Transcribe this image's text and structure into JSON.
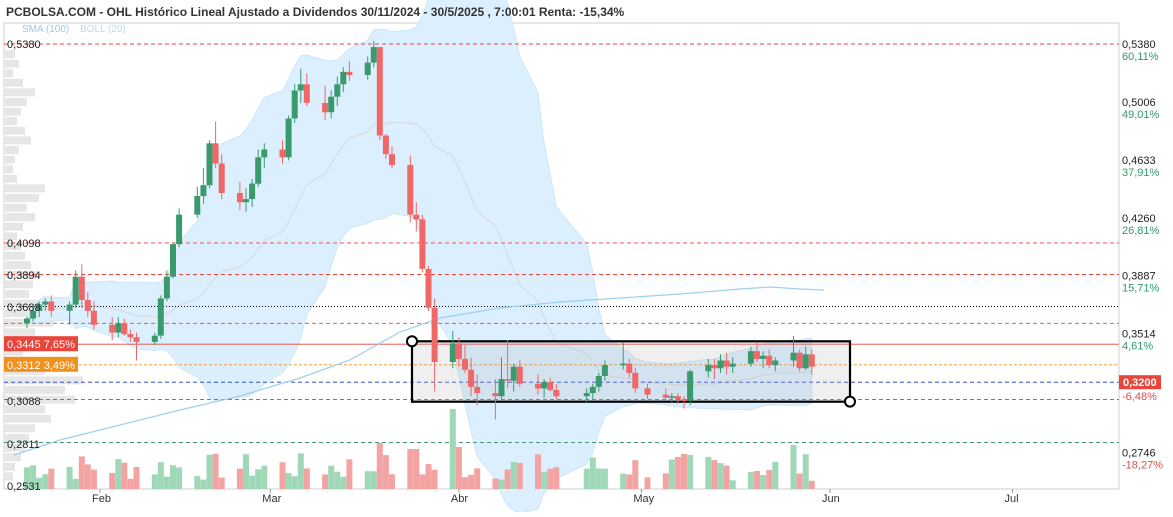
{
  "header": {
    "title": "PCBOLSA.COM - OHL Histórico Lineal Ajustado a Dividendos 30/11/2024 - 30/5/2025 , 7:00:01 Renta: -15,34%"
  },
  "legend": {
    "sma_label": "SMA (100)",
    "boll_label": "BOLL (20)"
  },
  "colors": {
    "bull": "#3a9a6e",
    "bear": "#f06767",
    "bollinger_fill": "#dcefff",
    "sma": "#9bd0f0",
    "resistance": "#e8453c",
    "support_blue": "#1b38c8",
    "orange": "#f0901e",
    "volume_bull": "#9ed8b6",
    "volume_bear": "#f4a3a3"
  },
  "chart_data": {
    "type": "candlestick",
    "title": "OHL Histórico Lineal Ajustado a Dividendos 30/11/2024 - 30/5/2025",
    "ylim": [
      0.2531,
      0.538
    ],
    "x_months": [
      "Feb",
      "Mar",
      "Abr",
      "May",
      "Jun",
      "Jul"
    ],
    "left_axis_ticks": [
      "0,5380",
      "0,4098",
      "0,3894",
      "0,3688",
      "0,3088",
      "0,2811",
      "0,2531"
    ],
    "right_axis_ticks": [
      {
        "price": "0,5380",
        "pct": "60,11%"
      },
      {
        "price": "0,5006",
        "pct": "49,01%"
      },
      {
        "price": "0,4633",
        "pct": "37,91%"
      },
      {
        "price": "0,4260",
        "pct": "26,81%"
      },
      {
        "price": "0,3887",
        "pct": "15,71%"
      },
      {
        "price": "0,3514",
        "pct": "4,61%"
      },
      {
        "price": "0,2746",
        "pct": "-18,27%"
      }
    ],
    "last_price_label": "0,3200",
    "last_pct_label": "-6,48%",
    "level_tags": [
      {
        "price": "0,3445",
        "pct": "7,65%",
        "color": "#e8453c"
      },
      {
        "price": "0,3312",
        "pct": "3,49%",
        "color": "#f0901e"
      }
    ],
    "levels": [
      0.538,
      0.4098,
      0.3894,
      0.3688,
      0.3445,
      0.3312,
      0.32,
      0.3088,
      0.2811
    ],
    "candles": [
      {
        "d": "2025-01-20",
        "o": 0.358,
        "h": 0.362,
        "l": 0.355,
        "c": 0.361
      },
      {
        "d": "2025-01-21",
        "o": 0.361,
        "h": 0.369,
        "l": 0.359,
        "c": 0.366
      },
      {
        "d": "2025-01-22",
        "o": 0.366,
        "h": 0.372,
        "l": 0.362,
        "c": 0.37
      },
      {
        "d": "2025-01-23",
        "o": 0.37,
        "h": 0.374,
        "l": 0.366,
        "c": 0.372
      },
      {
        "d": "2025-01-24",
        "o": 0.372,
        "h": 0.376,
        "l": 0.362,
        "c": 0.366
      },
      {
        "d": "2025-01-27",
        "o": 0.366,
        "h": 0.372,
        "l": 0.357,
        "c": 0.37
      },
      {
        "d": "2025-01-28",
        "o": 0.37,
        "h": 0.392,
        "l": 0.368,
        "c": 0.388
      },
      {
        "d": "2025-01-29",
        "o": 0.388,
        "h": 0.396,
        "l": 0.368,
        "c": 0.373
      },
      {
        "d": "2025-01-30",
        "o": 0.373,
        "h": 0.378,
        "l": 0.362,
        "c": 0.366
      },
      {
        "d": "2025-01-31",
        "o": 0.366,
        "h": 0.372,
        "l": 0.354,
        "c": 0.357
      },
      {
        "d": "2025-02-03",
        "o": 0.357,
        "h": 0.362,
        "l": 0.347,
        "c": 0.352
      },
      {
        "d": "2025-02-04",
        "o": 0.352,
        "h": 0.362,
        "l": 0.349,
        "c": 0.358
      },
      {
        "d": "2025-02-05",
        "o": 0.358,
        "h": 0.361,
        "l": 0.35,
        "c": 0.351
      },
      {
        "d": "2025-02-06",
        "o": 0.351,
        "h": 0.354,
        "l": 0.346,
        "c": 0.349
      },
      {
        "d": "2025-02-07",
        "o": 0.349,
        "h": 0.352,
        "l": 0.334,
        "c": 0.346
      },
      {
        "d": "2025-02-10",
        "o": 0.346,
        "h": 0.352,
        "l": 0.344,
        "c": 0.35
      },
      {
        "d": "2025-02-11",
        "o": 0.35,
        "h": 0.376,
        "l": 0.348,
        "c": 0.374
      },
      {
        "d": "2025-02-12",
        "o": 0.374,
        "h": 0.392,
        "l": 0.372,
        "c": 0.388
      },
      {
        "d": "2025-02-13",
        "o": 0.388,
        "h": 0.41,
        "l": 0.387,
        "c": 0.409
      },
      {
        "d": "2025-02-14",
        "o": 0.409,
        "h": 0.432,
        "l": 0.407,
        "c": 0.428
      },
      {
        "d": "2025-02-17",
        "o": 0.428,
        "h": 0.446,
        "l": 0.426,
        "c": 0.44
      },
      {
        "d": "2025-02-18",
        "o": 0.44,
        "h": 0.458,
        "l": 0.435,
        "c": 0.447
      },
      {
        "d": "2025-02-19",
        "o": 0.447,
        "h": 0.476,
        "l": 0.445,
        "c": 0.474
      },
      {
        "d": "2025-02-20",
        "o": 0.474,
        "h": 0.488,
        "l": 0.458,
        "c": 0.461
      },
      {
        "d": "2025-02-21",
        "o": 0.461,
        "h": 0.467,
        "l": 0.438,
        "c": 0.442
      },
      {
        "d": "2025-02-24",
        "o": 0.442,
        "h": 0.449,
        "l": 0.431,
        "c": 0.436
      },
      {
        "d": "2025-02-25",
        "o": 0.436,
        "h": 0.445,
        "l": 0.43,
        "c": 0.438
      },
      {
        "d": "2025-02-26",
        "o": 0.438,
        "h": 0.451,
        "l": 0.433,
        "c": 0.448
      },
      {
        "d": "2025-02-27",
        "o": 0.448,
        "h": 0.47,
        "l": 0.446,
        "c": 0.465
      },
      {
        "d": "2025-02-28",
        "o": 0.465,
        "h": 0.474,
        "l": 0.458,
        "c": 0.47
      },
      {
        "d": "2025-03-03",
        "o": 0.47,
        "h": 0.476,
        "l": 0.461,
        "c": 0.465
      },
      {
        "d": "2025-03-04",
        "o": 0.465,
        "h": 0.492,
        "l": 0.463,
        "c": 0.49
      },
      {
        "d": "2025-03-05",
        "o": 0.49,
        "h": 0.512,
        "l": 0.487,
        "c": 0.508
      },
      {
        "d": "2025-03-06",
        "o": 0.508,
        "h": 0.522,
        "l": 0.5,
        "c": 0.512
      },
      {
        "d": "2025-03-07",
        "o": 0.512,
        "h": 0.519,
        "l": 0.498,
        "c": 0.5
      },
      {
        "d": "2025-03-10",
        "o": 0.5,
        "h": 0.511,
        "l": 0.489,
        "c": 0.494
      },
      {
        "d": "2025-03-11",
        "o": 0.494,
        "h": 0.508,
        "l": 0.49,
        "c": 0.504
      },
      {
        "d": "2025-03-12",
        "o": 0.504,
        "h": 0.517,
        "l": 0.498,
        "c": 0.512
      },
      {
        "d": "2025-03-13",
        "o": 0.512,
        "h": 0.523,
        "l": 0.507,
        "c": 0.52
      },
      {
        "d": "2025-03-14",
        "o": 0.52,
        "h": 0.527,
        "l": 0.514,
        "c": 0.518
      },
      {
        "d": "2025-03-17",
        "o": 0.518,
        "h": 0.53,
        "l": 0.515,
        "c": 0.526
      },
      {
        "d": "2025-03-18",
        "o": 0.526,
        "h": 0.54,
        "l": 0.523,
        "c": 0.536
      },
      {
        "d": "2025-03-19",
        "o": 0.536,
        "h": 0.536,
        "l": 0.476,
        "c": 0.479
      },
      {
        "d": "2025-03-20",
        "o": 0.479,
        "h": 0.48,
        "l": 0.464,
        "c": 0.467
      },
      {
        "d": "2025-03-21",
        "o": 0.467,
        "h": 0.472,
        "l": 0.458,
        "c": 0.46
      },
      {
        "d": "2025-03-24",
        "o": 0.46,
        "h": 0.466,
        "l": 0.423,
        "c": 0.428
      },
      {
        "d": "2025-03-25",
        "o": 0.428,
        "h": 0.436,
        "l": 0.417,
        "c": 0.425
      },
      {
        "d": "2025-03-26",
        "o": 0.425,
        "h": 0.428,
        "l": 0.391,
        "c": 0.393
      },
      {
        "d": "2025-03-27",
        "o": 0.393,
        "h": 0.395,
        "l": 0.366,
        "c": 0.368
      },
      {
        "d": "2025-03-28",
        "o": 0.368,
        "h": 0.374,
        "l": 0.314,
        "c": 0.333
      },
      {
        "d": "2025-03-31",
        "o": 0.333,
        "h": 0.353,
        "l": 0.329,
        "c": 0.345
      },
      {
        "d": "2025-04-01",
        "o": 0.345,
        "h": 0.349,
        "l": 0.33,
        "c": 0.335
      },
      {
        "d": "2025-04-02",
        "o": 0.335,
        "h": 0.344,
        "l": 0.326,
        "c": 0.328
      },
      {
        "d": "2025-04-03",
        "o": 0.328,
        "h": 0.336,
        "l": 0.311,
        "c": 0.317
      },
      {
        "d": "2025-04-04",
        "o": 0.317,
        "h": 0.325,
        "l": 0.305,
        "c": 0.313
      },
      {
        "d": "2025-04-07",
        "o": 0.313,
        "h": 0.322,
        "l": 0.296,
        "c": 0.311
      },
      {
        "d": "2025-04-08",
        "o": 0.311,
        "h": 0.336,
        "l": 0.309,
        "c": 0.322
      },
      {
        "d": "2025-04-09",
        "o": 0.322,
        "h": 0.347,
        "l": 0.316,
        "c": 0.321
      },
      {
        "d": "2025-04-10",
        "o": 0.321,
        "h": 0.332,
        "l": 0.314,
        "c": 0.33
      },
      {
        "d": "2025-04-11",
        "o": 0.33,
        "h": 0.334,
        "l": 0.317,
        "c": 0.319
      },
      {
        "d": "2025-04-14",
        "o": 0.319,
        "h": 0.325,
        "l": 0.312,
        "c": 0.316
      },
      {
        "d": "2025-04-15",
        "o": 0.316,
        "h": 0.322,
        "l": 0.31,
        "c": 0.32
      },
      {
        "d": "2025-04-16",
        "o": 0.32,
        "h": 0.323,
        "l": 0.314,
        "c": 0.315
      },
      {
        "d": "2025-04-17",
        "o": 0.315,
        "h": 0.319,
        "l": 0.309,
        "c": 0.311
      },
      {
        "d": "2025-04-22",
        "o": 0.311,
        "h": 0.316,
        "l": 0.307,
        "c": 0.313
      },
      {
        "d": "2025-04-23",
        "o": 0.313,
        "h": 0.319,
        "l": 0.309,
        "c": 0.317
      },
      {
        "d": "2025-04-24",
        "o": 0.317,
        "h": 0.326,
        "l": 0.314,
        "c": 0.324
      },
      {
        "d": "2025-04-25",
        "o": 0.324,
        "h": 0.334,
        "l": 0.321,
        "c": 0.331
      },
      {
        "d": "2025-04-28",
        "o": 0.331,
        "h": 0.346,
        "l": 0.328,
        "c": 0.332
      },
      {
        "d": "2025-04-29",
        "o": 0.332,
        "h": 0.335,
        "l": 0.323,
        "c": 0.326
      },
      {
        "d": "2025-04-30",
        "o": 0.326,
        "h": 0.329,
        "l": 0.313,
        "c": 0.316
      },
      {
        "d": "2025-05-02",
        "o": 0.316,
        "h": 0.319,
        "l": 0.309,
        "c": 0.312
      },
      {
        "d": "2025-05-05",
        "o": 0.312,
        "h": 0.316,
        "l": 0.309,
        "c": 0.31
      },
      {
        "d": "2025-05-06",
        "o": 0.31,
        "h": 0.313,
        "l": 0.307,
        "c": 0.311
      },
      {
        "d": "2025-05-07",
        "o": 0.311,
        "h": 0.313,
        "l": 0.306,
        "c": 0.309
      },
      {
        "d": "2025-05-08",
        "o": 0.309,
        "h": 0.311,
        "l": 0.303,
        "c": 0.308
      },
      {
        "d": "2025-05-09",
        "o": 0.308,
        "h": 0.328,
        "l": 0.305,
        "c": 0.327
      },
      {
        "d": "2025-05-12",
        "o": 0.327,
        "h": 0.335,
        "l": 0.323,
        "c": 0.331
      },
      {
        "d": "2025-05-13",
        "o": 0.331,
        "h": 0.335,
        "l": 0.322,
        "c": 0.329
      },
      {
        "d": "2025-05-14",
        "o": 0.329,
        "h": 0.338,
        "l": 0.326,
        "c": 0.334
      },
      {
        "d": "2025-05-15",
        "o": 0.334,
        "h": 0.339,
        "l": 0.325,
        "c": 0.33
      },
      {
        "d": "2025-05-16",
        "o": 0.33,
        "h": 0.336,
        "l": 0.326,
        "c": 0.332
      },
      {
        "d": "2025-05-19",
        "o": 0.332,
        "h": 0.343,
        "l": 0.33,
        "c": 0.34
      },
      {
        "d": "2025-05-20",
        "o": 0.34,
        "h": 0.346,
        "l": 0.333,
        "c": 0.335
      },
      {
        "d": "2025-05-21",
        "o": 0.335,
        "h": 0.34,
        "l": 0.329,
        "c": 0.337
      },
      {
        "d": "2025-05-22",
        "o": 0.337,
        "h": 0.341,
        "l": 0.329,
        "c": 0.331
      },
      {
        "d": "2025-05-23",
        "o": 0.331,
        "h": 0.336,
        "l": 0.327,
        "c": 0.334
      },
      {
        "d": "2025-05-26",
        "o": 0.334,
        "h": 0.35,
        "l": 0.33,
        "c": 0.339
      },
      {
        "d": "2025-05-27",
        "o": 0.339,
        "h": 0.341,
        "l": 0.327,
        "c": 0.329
      },
      {
        "d": "2025-05-28",
        "o": 0.329,
        "h": 0.343,
        "l": 0.328,
        "c": 0.338
      },
      {
        "d": "2025-05-29",
        "o": 0.338,
        "h": 0.341,
        "l": 0.325,
        "c": 0.33
      }
    ],
    "volume_up_to": 0.35
  }
}
